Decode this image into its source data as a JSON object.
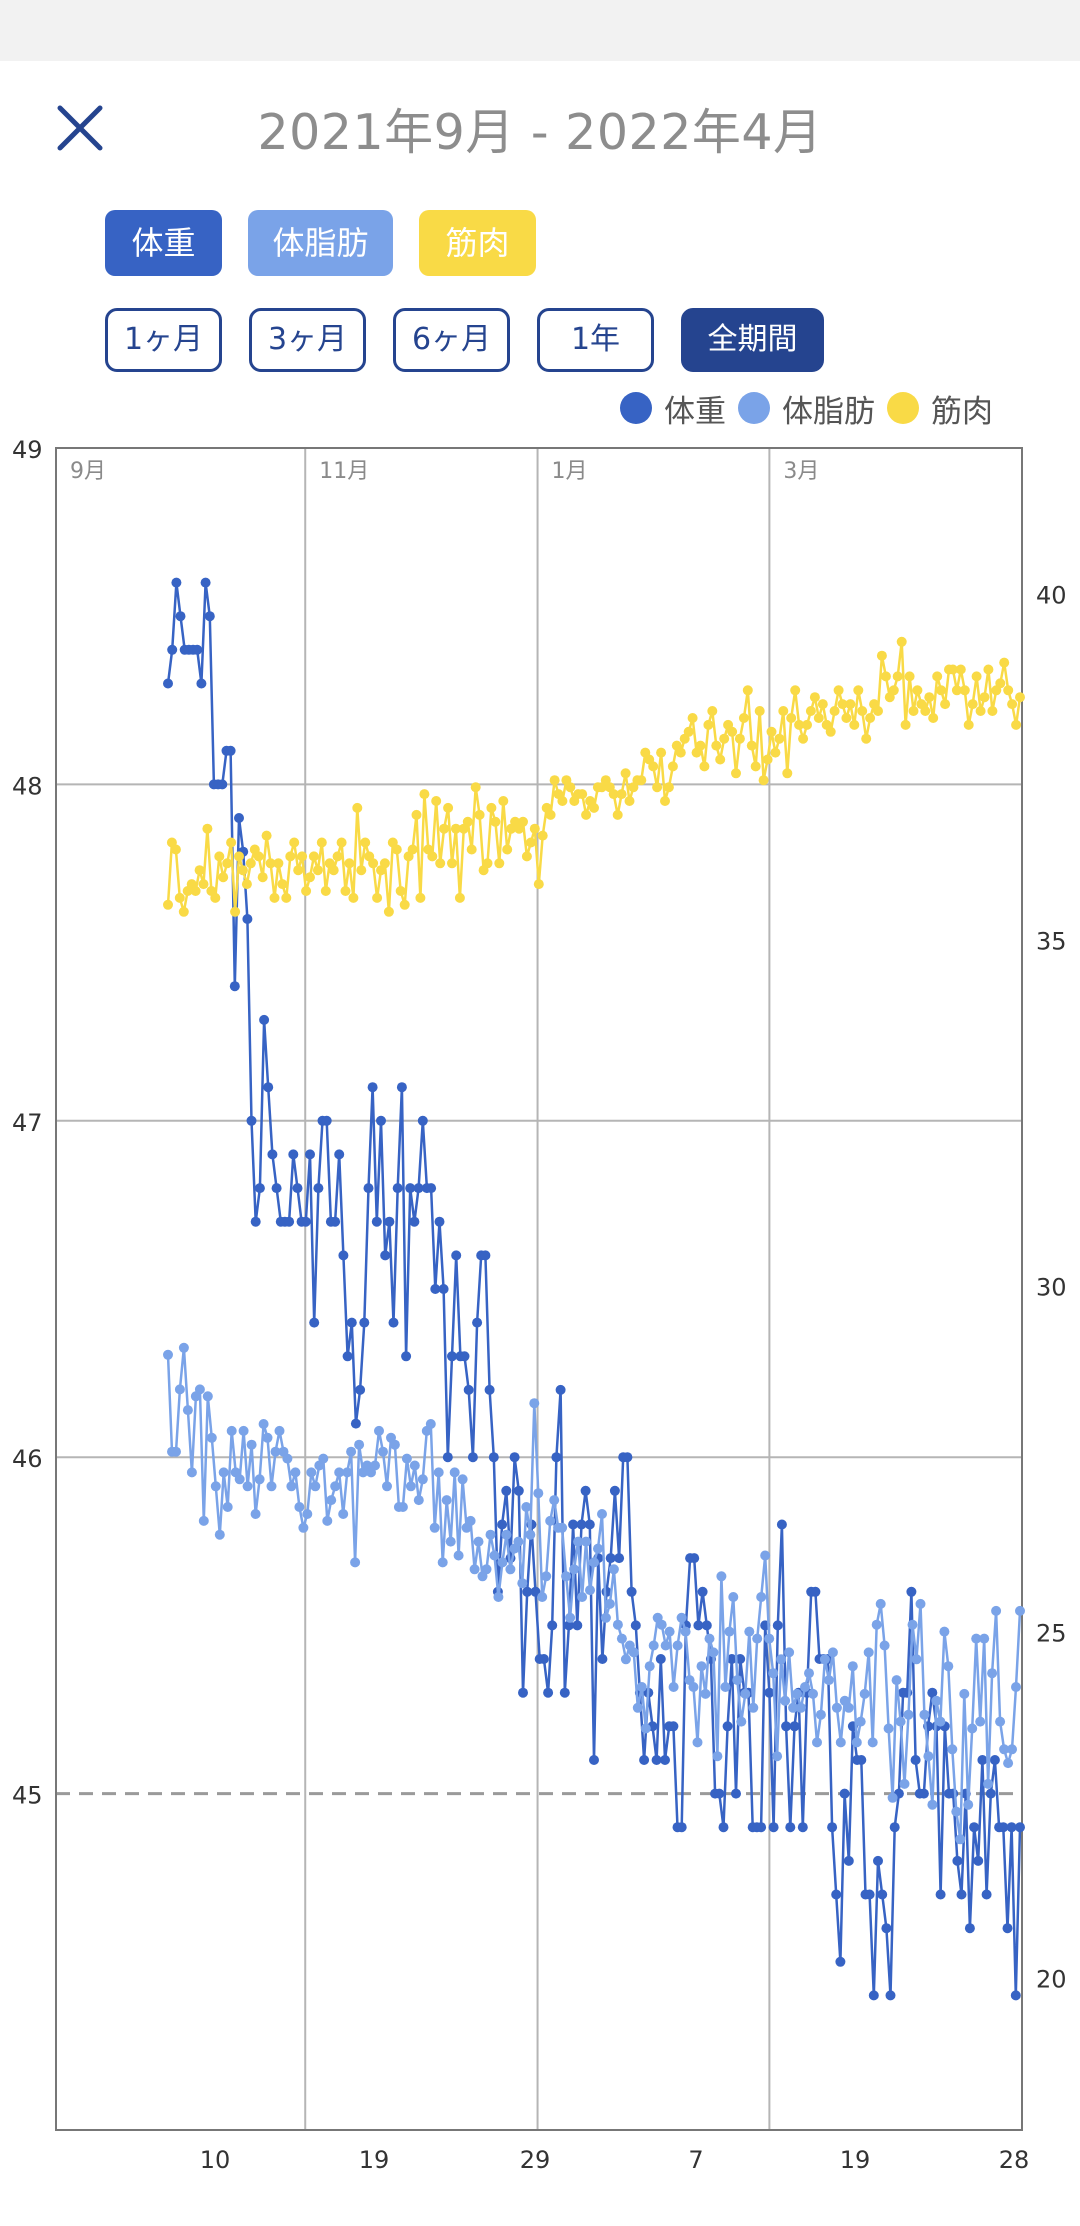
{
  "header": {
    "title": "2021年9月 - 2022年4月",
    "close_icon": "close-icon"
  },
  "metric_chips": [
    {
      "label": "体重",
      "color": "#3763c4"
    },
    {
      "label": "体脂肪",
      "color": "#7aa3e8"
    },
    {
      "label": "筋肉",
      "color": "#f9da46"
    }
  ],
  "range_buttons": [
    {
      "label": "1ヶ月",
      "active": false
    },
    {
      "label": "3ヶ月",
      "active": false
    },
    {
      "label": "6ヶ月",
      "active": false
    },
    {
      "label": "1年",
      "active": false
    },
    {
      "label": "全期間",
      "active": true
    }
  ],
  "legend": [
    {
      "label": "体重",
      "color": "#3763c4"
    },
    {
      "label": "体脂肪",
      "color": "#7aa3e8"
    },
    {
      "label": "筋肉",
      "color": "#f9da46"
    }
  ],
  "chart_data": {
    "type": "line",
    "left_axis": {
      "ticks": [
        "49",
        "48",
        "47",
        "46",
        "45"
      ],
      "range": [
        44,
        49
      ]
    },
    "right_axis": {
      "ticks": [
        "40",
        "35",
        "30",
        "25",
        "20"
      ],
      "range": [
        17.8,
        42.1
      ]
    },
    "month_labels": [
      "9月",
      "11月",
      "1月",
      "3月"
    ],
    "x_tick_labels": [
      "10",
      "19",
      "29",
      "7",
      "19",
      "28"
    ],
    "target_line": 45,
    "grid": true,
    "series": [
      {
        "name": "体重",
        "axis": "left",
        "color": "#3763c4",
        "values": [
          48.3,
          48.4,
          48.6,
          48.5,
          48.4,
          48.4,
          48.4,
          48.4,
          48.3,
          48.6,
          48.5,
          48.0,
          48.0,
          48.0,
          48.1,
          48.1,
          47.4,
          47.9,
          47.8,
          47.6,
          47.0,
          46.7,
          46.8,
          47.3,
          47.1,
          46.9,
          46.8,
          46.7,
          46.7,
          46.7,
          46.9,
          46.8,
          46.7,
          46.7,
          46.9,
          46.4,
          46.8,
          47.0,
          47.0,
          46.7,
          46.7,
          46.9,
          46.6,
          46.3,
          46.4,
          46.1,
          46.2,
          46.4,
          46.8,
          47.1,
          46.7,
          47.0,
          46.6,
          46.7,
          46.4,
          46.8,
          47.1,
          46.3,
          46.8,
          46.7,
          46.8,
          47.0,
          46.8,
          46.8,
          46.5,
          46.7,
          46.5,
          46.0,
          46.3,
          46.6,
          46.3,
          46.3,
          46.2,
          46.0,
          46.4,
          46.6,
          46.6,
          46.2,
          46.0,
          45.6,
          45.8,
          45.9,
          45.7,
          46.0,
          45.9,
          45.3,
          45.6,
          45.8,
          45.6,
          45.4,
          45.4,
          45.3,
          45.5,
          46.0,
          46.2,
          45.3,
          45.5,
          45.8,
          45.5,
          45.8,
          45.9,
          45.8,
          45.1,
          45.7,
          45.4,
          45.6,
          45.7,
          45.9,
          45.7,
          46.0,
          46.0,
          45.6,
          45.5,
          45.3,
          45.1,
          45.3,
          45.2,
          45.1,
          45.4,
          45.1,
          45.2,
          45.2,
          44.9,
          44.9,
          45.5,
          45.7,
          45.7,
          45.5,
          45.6,
          45.5,
          45.4,
          45.0,
          45.0,
          44.9,
          45.2,
          45.4,
          45.0,
          45.4,
          45.3,
          45.3,
          44.9,
          44.9,
          44.9,
          45.5,
          45.3,
          44.9,
          45.5,
          45.8,
          45.2,
          44.9,
          45.2,
          45.3,
          44.9,
          45.3,
          45.6,
          45.6,
          45.4,
          45.4,
          45.4,
          44.9,
          44.7,
          44.5,
          45.0,
          44.8,
          45.2,
          45.1,
          45.1,
          44.7,
          44.7,
          44.4,
          44.8,
          44.7,
          44.6,
          44.4,
          44.9,
          45.0,
          45.3,
          45.3,
          45.6,
          45.1,
          45.0,
          45.0,
          45.2,
          45.3,
          45.2,
          44.7,
          45.2,
          45.0,
          45.0,
          44.8,
          44.7,
          45.0,
          44.6,
          44.9,
          44.8,
          45.1,
          44.7,
          45.0,
          45.1,
          44.9,
          44.9,
          44.6,
          44.9,
          44.4,
          44.9
        ]
      },
      {
        "name": "体脂肪",
        "axis": "right",
        "color": "#7aa3e8",
        "values": [
          29.0,
          27.6,
          27.6,
          28.5,
          29.1,
          28.2,
          27.3,
          28.4,
          28.5,
          26.6,
          28.4,
          27.8,
          27.1,
          26.4,
          27.3,
          26.8,
          27.9,
          27.3,
          27.2,
          27.9,
          27.1,
          27.7,
          26.7,
          27.2,
          28.0,
          27.8,
          27.1,
          27.6,
          27.9,
          27.6,
          27.5,
          27.1,
          27.3,
          26.8,
          26.5,
          26.7,
          27.3,
          27.1,
          27.4,
          27.5,
          26.6,
          26.9,
          27.1,
          27.3,
          26.7,
          27.3,
          27.6,
          26.0,
          27.7,
          27.3,
          27.4,
          27.3,
          27.4,
          27.9,
          27.6,
          27.1,
          27.8,
          27.7,
          26.8,
          26.8,
          27.5,
          27.1,
          27.4,
          26.9,
          27.2,
          27.9,
          28.0,
          26.5,
          27.3,
          26.0,
          26.9,
          26.3,
          27.3,
          26.1,
          27.2,
          26.5,
          26.6,
          25.9,
          26.3,
          25.8,
          25.9,
          26.4,
          26.1,
          25.5,
          26.0,
          26.4,
          25.9,
          26.2,
          26.3,
          25.7,
          26.8,
          26.4,
          28.3,
          27.0,
          25.5,
          25.8,
          26.6,
          26.9,
          26.5,
          26.5,
          25.8,
          25.2,
          25.9,
          26.3,
          25.5,
          26.3,
          25.6,
          26.0,
          26.2,
          26.7,
          25.2,
          25.4,
          25.9,
          25.1,
          24.9,
          24.6,
          24.8,
          24.7,
          23.9,
          24.2,
          23.6,
          24.5,
          24.8,
          25.2,
          25.1,
          24.8,
          25.0,
          24.2,
          24.8,
          25.2,
          25.0,
          24.3,
          24.2,
          23.4,
          24.5,
          24.1,
          24.9,
          24.7,
          23.2,
          25.8,
          24.2,
          25.0,
          25.5,
          24.3,
          23.7,
          24.1,
          25.0,
          23.9,
          24.9,
          25.5,
          26.1,
          24.9,
          24.4,
          23.2,
          24.6,
          24.0,
          24.7,
          23.9,
          24.1,
          23.9,
          24.2,
          24.4,
          24.1,
          23.4,
          23.8,
          24.6,
          24.3,
          24.7,
          23.9,
          23.4,
          24.0,
          23.9,
          24.5,
          23.4,
          23.7,
          24.1,
          24.7,
          23.4,
          25.1,
          25.4,
          24.8,
          23.6,
          22.6,
          24.3,
          23.7,
          22.8,
          23.8,
          25.1,
          24.6,
          25.4,
          23.8,
          23.2,
          22.5,
          24.0,
          23.7,
          25.0,
          24.5,
          23.3,
          22.4,
          22.0,
          24.1,
          22.5,
          23.6,
          24.9,
          23.7,
          24.9,
          22.8,
          24.4,
          25.3,
          23.7,
          23.3,
          23.1,
          23.3,
          24.2,
          25.3
        ]
      },
      {
        "name": "筋肉",
        "axis": "right",
        "color": "#f9da46",
        "values": [
          35.5,
          36.4,
          36.3,
          35.6,
          35.4,
          35.7,
          35.8,
          35.7,
          36.0,
          35.8,
          36.6,
          35.7,
          35.6,
          36.2,
          35.9,
          36.1,
          36.4,
          35.4,
          36.2,
          36.0,
          35.8,
          36.1,
          36.3,
          36.2,
          35.9,
          36.5,
          36.1,
          35.6,
          36.1,
          35.8,
          35.6,
          36.2,
          36.4,
          36.0,
          36.2,
          35.7,
          35.9,
          36.2,
          36.0,
          36.4,
          35.7,
          36.1,
          36.0,
          36.2,
          36.4,
          35.7,
          36.1,
          35.6,
          36.9,
          36.0,
          36.4,
          36.2,
          36.1,
          35.6,
          36.0,
          36.1,
          35.4,
          36.4,
          36.3,
          35.7,
          35.5,
          36.2,
          36.3,
          36.8,
          35.6,
          37.1,
          36.3,
          36.2,
          37.0,
          36.1,
          36.6,
          36.9,
          36.1,
          36.6,
          35.6,
          36.6,
          36.7,
          36.3,
          37.2,
          36.8,
          36.0,
          36.1,
          36.9,
          36.7,
          36.1,
          37.0,
          36.3,
          36.6,
          36.7,
          36.6,
          36.7,
          36.2,
          36.4,
          36.6,
          35.8,
          36.5,
          36.9,
          36.8,
          37.3,
          37.1,
          37.0,
          37.3,
          37.2,
          37.0,
          37.1,
          37.1,
          36.8,
          37.0,
          36.9,
          37.2,
          37.2,
          37.3,
          37.2,
          37.1,
          36.8,
          37.1,
          37.4,
          37.0,
          37.2,
          37.3,
          37.3,
          37.7,
          37.6,
          37.5,
          37.2,
          37.7,
          37.0,
          37.2,
          37.5,
          37.8,
          37.7,
          37.9,
          38.0,
          38.2,
          37.7,
          37.8,
          37.5,
          38.1,
          38.3,
          37.8,
          37.6,
          37.9,
          38.1,
          38.0,
          37.4,
          37.9,
          38.2,
          38.6,
          37.8,
          37.5,
          38.3,
          37.3,
          37.6,
          38.0,
          37.7,
          37.9,
          38.3,
          37.4,
          38.2,
          38.6,
          38.1,
          37.9,
          38.1,
          38.3,
          38.5,
          38.2,
          38.4,
          38.1,
          38.0,
          38.3,
          38.6,
          38.4,
          38.2,
          38.4,
          38.1,
          38.6,
          38.3,
          37.9,
          38.2,
          38.4,
          38.3,
          39.1,
          38.8,
          38.5,
          38.6,
          38.8,
          39.3,
          38.1,
          38.8,
          38.3,
          38.6,
          38.4,
          38.3,
          38.5,
          38.2,
          38.8,
          38.6,
          38.4,
          38.9,
          38.9,
          38.6,
          38.9,
          38.6,
          38.1,
          38.4,
          38.8,
          38.3,
          38.5,
          38.9,
          38.3,
          38.6,
          38.7,
          39.0,
          38.6,
          38.4,
          38.1,
          38.5
        ]
      }
    ]
  }
}
